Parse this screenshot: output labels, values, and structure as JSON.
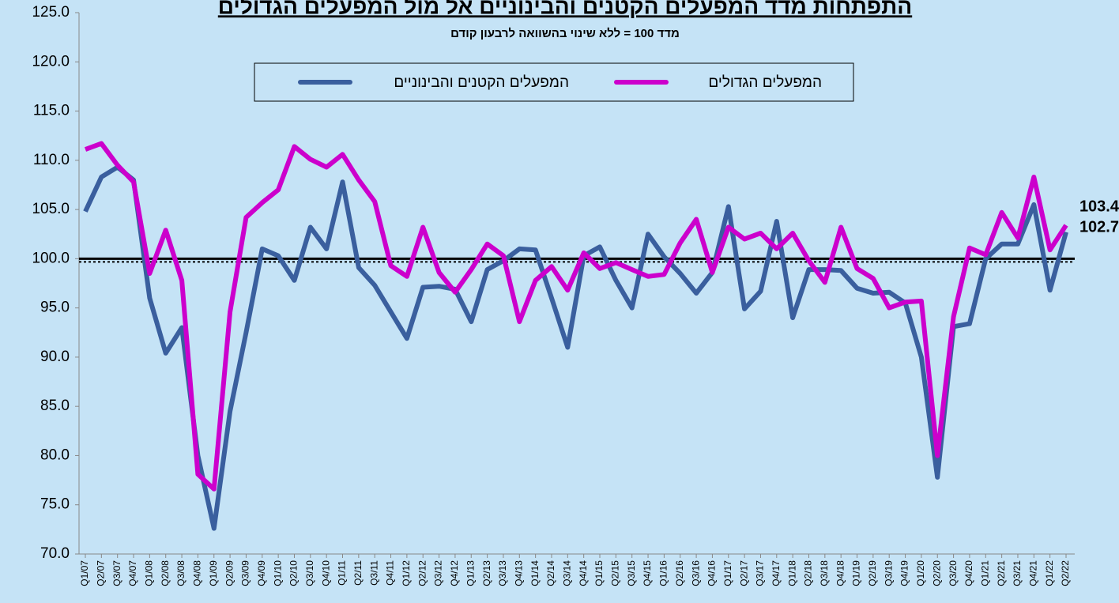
{
  "chart_data": {
    "type": "line",
    "title": "התפתחות מדד המפעלים הקטנים והבינוניים אל מול המפעלים הגדולים",
    "subtitle": "מדד 100 = ללא שינוי בהשוואה לרבעון קודם",
    "categories": [
      "Q1/07",
      "Q2/07",
      "Q3/07",
      "Q4/07",
      "Q1/08",
      "Q2/08",
      "Q3/08",
      "Q4/08",
      "Q1/09",
      "Q2/09",
      "Q3/09",
      "Q4/09",
      "Q1/10",
      "Q2/10",
      "Q3/10",
      "Q4/10",
      "Q1/11",
      "Q2/11",
      "Q3/11",
      "Q4/11",
      "Q1/12",
      "Q2/12",
      "Q3/12",
      "Q4/12",
      "Q1/13",
      "Q2/13",
      "Q3/13",
      "Q4/13",
      "Q1/14",
      "Q2/14",
      "Q3/14",
      "Q4/14",
      "Q1/15",
      "Q2/15",
      "Q3/15",
      "Q4/15",
      "Q1/16",
      "Q2/16",
      "Q3/16",
      "Q4/16",
      "Q1/17",
      "Q2/17",
      "Q3/17",
      "Q4/17",
      "Q1/18",
      "Q2/18",
      "Q3/18",
      "Q4/18",
      "Q1/19",
      "Q2/19",
      "Q3/19",
      "Q4/19",
      "Q1/20",
      "Q2/20",
      "Q3/20",
      "Q4/20",
      "Q1/21",
      "Q2/21",
      "Q3/21",
      "Q4/21",
      "Q1/22",
      "Q2/22"
    ],
    "series": [
      {
        "name": "המפעלים הקטנים והבינוניים",
        "color": "#3a5f9e",
        "values": [
          104.8,
          108.3,
          109.3,
          108.0,
          96.0,
          90.4,
          93.0,
          80.0,
          72.6,
          84.5,
          92.5,
          101.0,
          100.3,
          97.8,
          103.2,
          101.0,
          107.8,
          99.1,
          97.3,
          94.6,
          91.9,
          97.1,
          97.2,
          96.9,
          93.6,
          98.9,
          99.8,
          101.0,
          100.9,
          96.0,
          91.0,
          100.3,
          101.2,
          97.8,
          95.0,
          102.5,
          100.2,
          98.5,
          96.5,
          98.6,
          105.3,
          94.9,
          96.7,
          103.8,
          94.0,
          98.9,
          98.9,
          98.8,
          97.0,
          96.5,
          96.6,
          95.5,
          90.0,
          77.8,
          93.1,
          93.4,
          100.0,
          101.5,
          101.5,
          105.5,
          96.8,
          102.7
        ]
      },
      {
        "name": "המפעלים הגדולים",
        "color": "#cc00cc",
        "values": [
          111.1,
          111.7,
          109.5,
          107.8,
          98.5,
          102.9,
          97.8,
          78.1,
          76.6,
          94.6,
          104.2,
          105.7,
          107.0,
          111.4,
          110.1,
          109.3,
          110.6,
          108.0,
          105.8,
          99.3,
          98.2,
          103.2,
          98.6,
          96.6,
          98.9,
          101.5,
          100.3,
          93.6,
          97.8,
          99.2,
          96.8,
          100.6,
          99.0,
          99.6,
          98.9,
          98.2,
          98.4,
          101.6,
          104.0,
          98.6,
          103.2,
          102.0,
          102.6,
          101.0,
          102.6,
          99.8,
          97.6,
          103.2,
          99.0,
          98.0,
          95.0,
          95.6,
          95.7,
          80.0,
          94.1,
          101.1,
          100.4,
          104.7,
          102.1,
          108.3,
          100.9,
          103.4
        ]
      }
    ],
    "ylim": [
      70,
      125
    ],
    "yticks": [
      {
        "value": 70,
        "label": "70.0"
      },
      {
        "value": 75,
        "label": "75.0"
      },
      {
        "value": 80,
        "label": "80.0"
      },
      {
        "value": 85,
        "label": "85.0"
      },
      {
        "value": 90,
        "label": "90.0"
      },
      {
        "value": 95,
        "label": "95.0"
      },
      {
        "value": 100,
        "label": "100.0"
      },
      {
        "value": 105,
        "label": "105.0"
      },
      {
        "value": 110,
        "label": "110.0"
      },
      {
        "value": 115,
        "label": "115.0"
      },
      {
        "value": 120,
        "label": "120.0"
      },
      {
        "value": 125,
        "label": "125.0"
      }
    ],
    "reference_line": 100,
    "legend": "top"
  }
}
